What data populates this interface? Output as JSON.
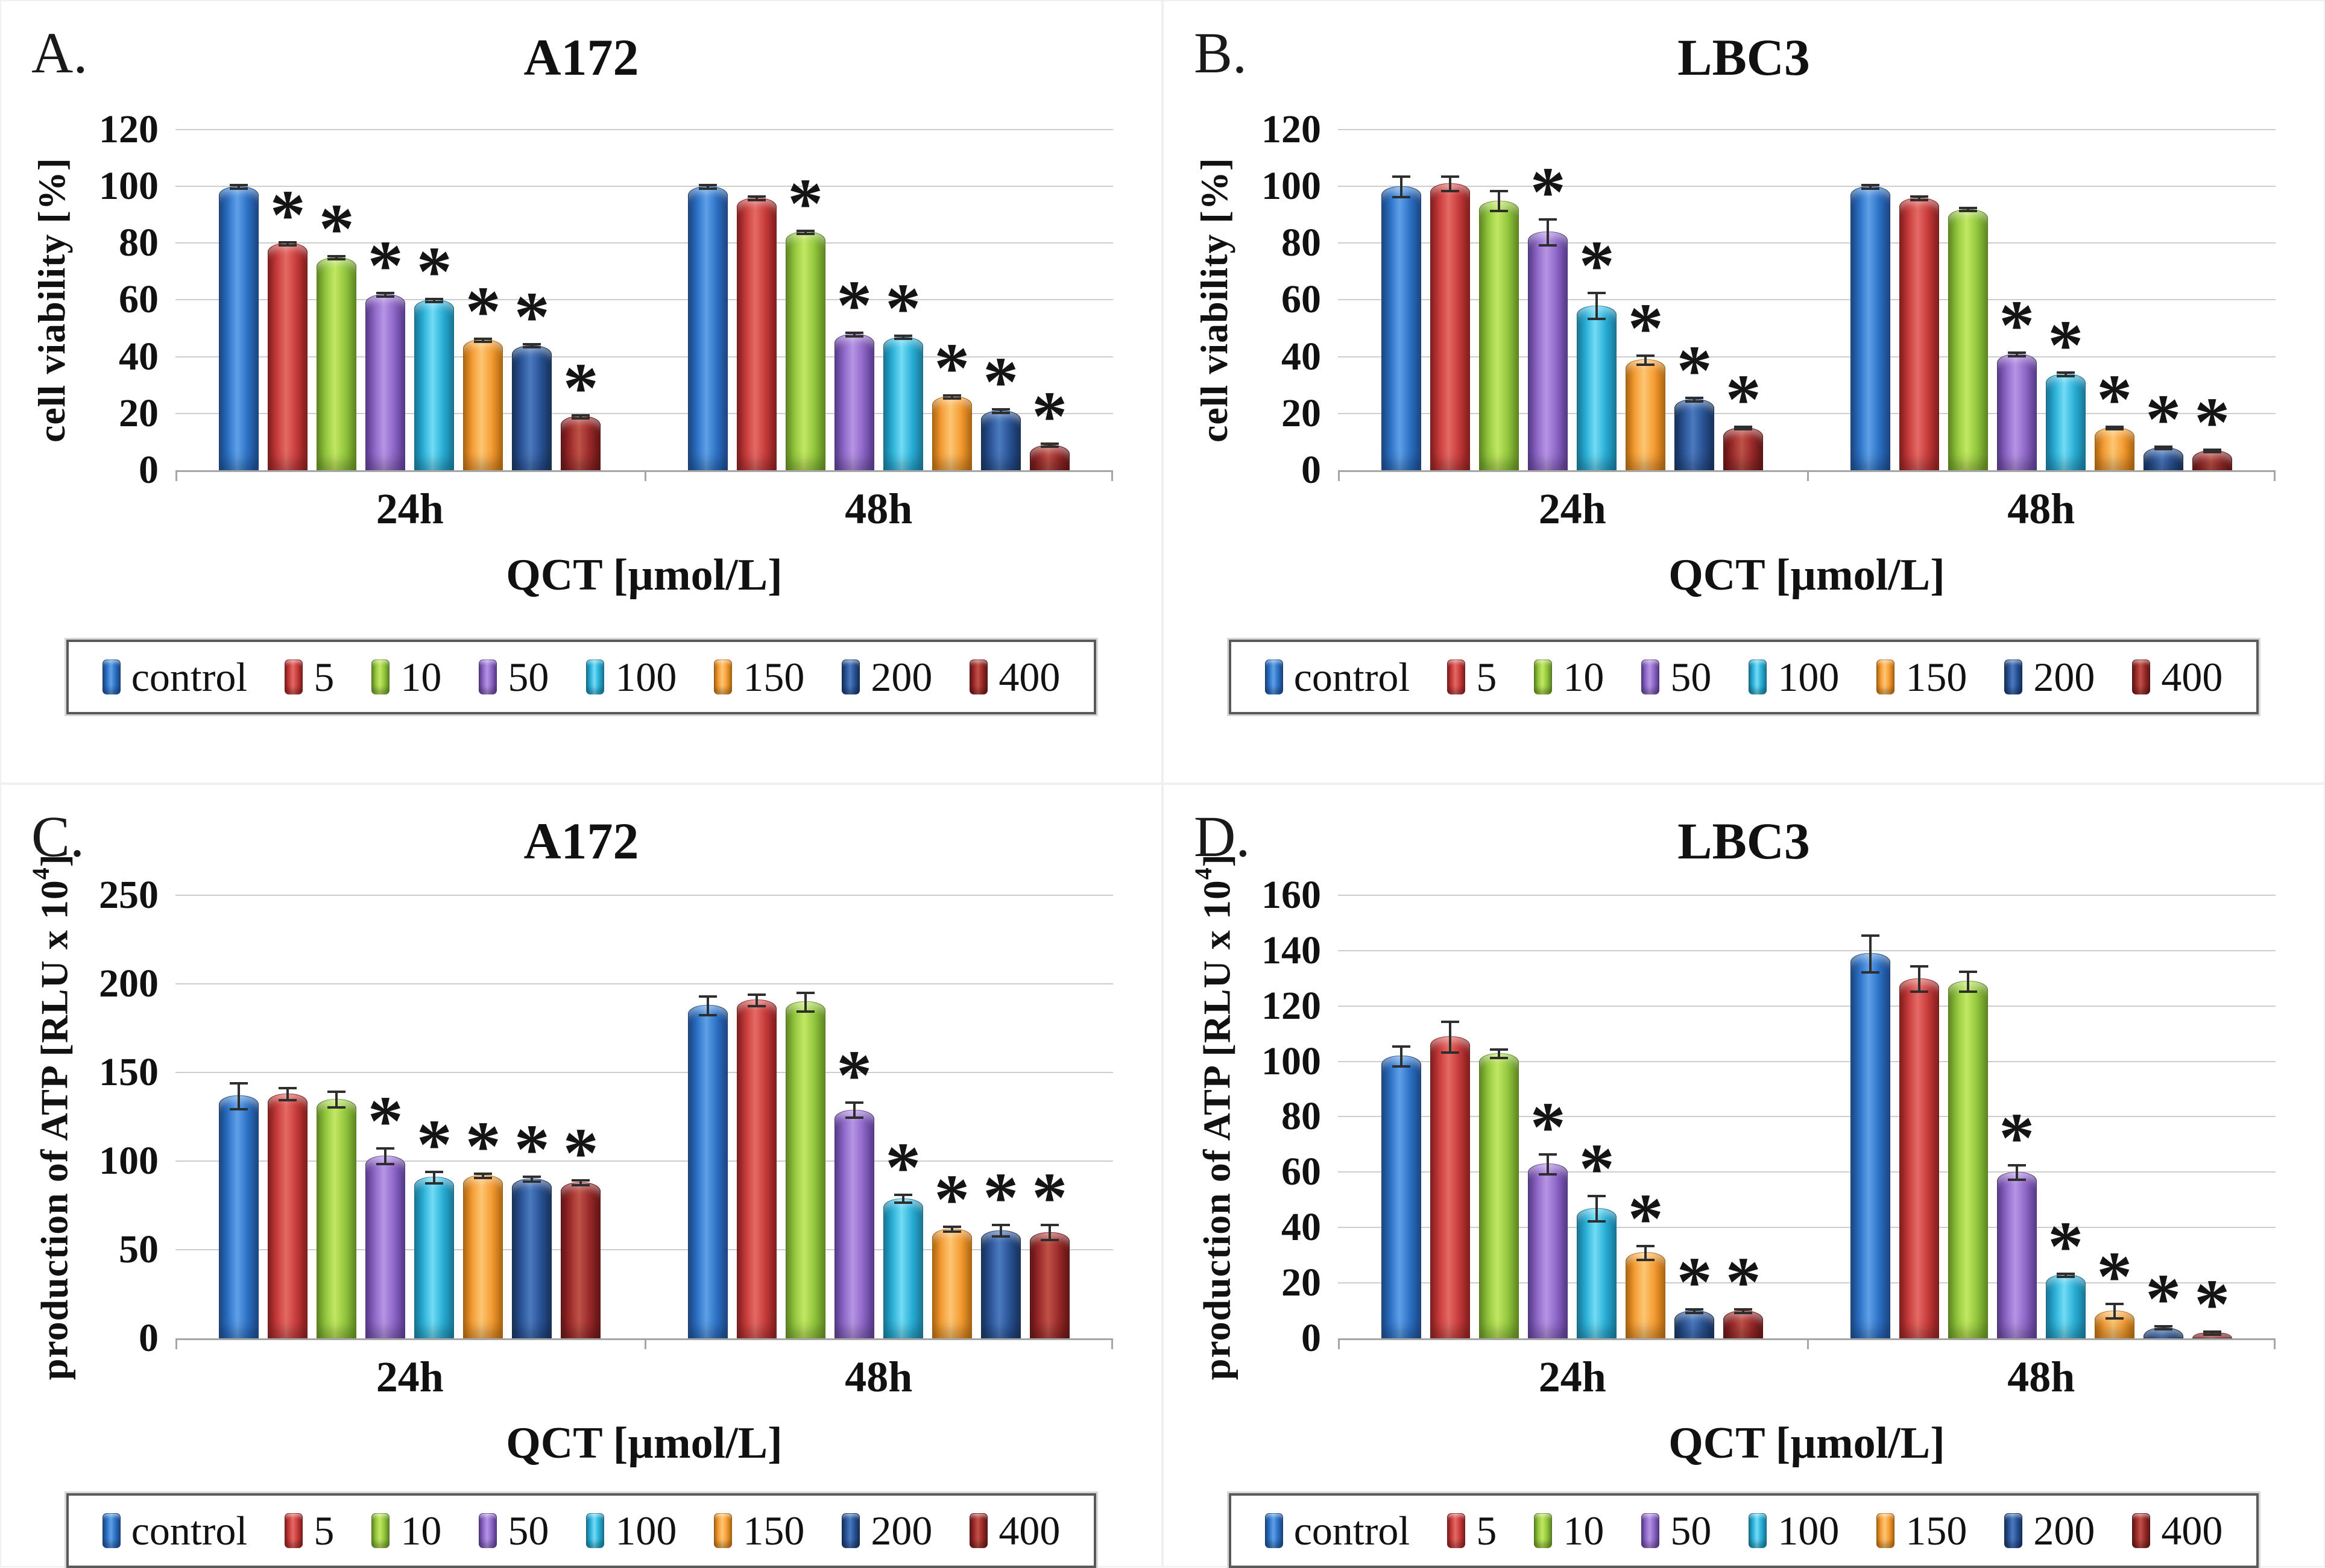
{
  "figure": {
    "background": "#ffffff",
    "panel_letters": [
      "A.",
      "B.",
      "C.",
      "D."
    ],
    "time_groups": [
      "24h",
      "48h"
    ]
  },
  "legend": {
    "labels": [
      "control",
      "5",
      "10",
      "50",
      "100",
      "150",
      "200",
      "400"
    ]
  },
  "colors": {
    "control": {
      "base": "#2D72C6",
      "light": "#5FA0E8",
      "dark": "#1C4C8F"
    },
    "5": {
      "base": "#C83C3C",
      "light": "#E46A64",
      "dark": "#8F1F1F"
    },
    "10": {
      "base": "#94C83F",
      "light": "#C2E763",
      "dark": "#689523"
    },
    "50": {
      "base": "#8F68C8",
      "light": "#B695E5",
      "dark": "#5E3E96"
    },
    "100": {
      "base": "#2BB0D8",
      "light": "#72DCF5",
      "dark": "#1881A5"
    },
    "150": {
      "base": "#F69D35",
      "light": "#FCC673",
      "dark": "#C1710E"
    },
    "200": {
      "base": "#2A5496",
      "light": "#4B7ABF",
      "dark": "#173463"
    },
    "400": {
      "base": "#9C2B2B",
      "light": "#BF5248",
      "dark": "#6A1515"
    }
  },
  "chart_data": [
    {
      "panel": "A.",
      "type": "bar",
      "title": "A172",
      "xlabel": "QCT [µmol/L]",
      "ylabel": "cell viability [%]",
      "ylim": [
        0,
        120
      ],
      "ytick_step": 20,
      "categories": [
        "24h",
        "48h"
      ],
      "grid": true,
      "legend_position": "bottom",
      "series": [
        {
          "name": "control",
          "values": [
            100,
            100
          ],
          "errors": [
            1,
            1
          ],
          "significant": [
            false,
            false
          ]
        },
        {
          "name": "5",
          "values": [
            80,
            96
          ],
          "errors": [
            1,
            1
          ],
          "significant": [
            true,
            false
          ]
        },
        {
          "name": "10",
          "values": [
            75,
            84
          ],
          "errors": [
            1,
            1
          ],
          "significant": [
            true,
            true
          ]
        },
        {
          "name": "50",
          "values": [
            62,
            48
          ],
          "errors": [
            1,
            1
          ],
          "significant": [
            true,
            true
          ]
        },
        {
          "name": "100",
          "values": [
            60,
            47
          ],
          "errors": [
            1,
            1
          ],
          "significant": [
            true,
            true
          ]
        },
        {
          "name": "150",
          "values": [
            46,
            26
          ],
          "errors": [
            1,
            1
          ],
          "significant": [
            true,
            true
          ]
        },
        {
          "name": "200",
          "values": [
            44,
            21
          ],
          "errors": [
            1,
            1
          ],
          "significant": [
            true,
            true
          ]
        },
        {
          "name": "400",
          "values": [
            19,
            9
          ],
          "errors": [
            1,
            1
          ],
          "significant": [
            true,
            true
          ]
        }
      ]
    },
    {
      "panel": "B.",
      "type": "bar",
      "title": "LBC3",
      "xlabel": "QCT [µmol/L]",
      "ylabel": "cell viability [%]",
      "ylim": [
        0,
        120
      ],
      "ytick_step": 20,
      "categories": [
        "24h",
        "48h"
      ],
      "grid": true,
      "legend_position": "bottom",
      "series": [
        {
          "name": "control",
          "values": [
            100,
            100
          ],
          "errors": [
            4,
            1
          ],
          "significant": [
            false,
            false
          ]
        },
        {
          "name": "5",
          "values": [
            101,
            96
          ],
          "errors": [
            3,
            1
          ],
          "significant": [
            false,
            false
          ]
        },
        {
          "name": "10",
          "values": [
            95,
            92
          ],
          "errors": [
            4,
            1
          ],
          "significant": [
            false,
            false
          ]
        },
        {
          "name": "50",
          "values": [
            84,
            41
          ],
          "errors": [
            5,
            1
          ],
          "significant": [
            true,
            true
          ]
        },
        {
          "name": "100",
          "values": [
            58,
            34
          ],
          "errors": [
            5,
            1
          ],
          "significant": [
            true,
            true
          ]
        },
        {
          "name": "150",
          "values": [
            39,
            15
          ],
          "errors": [
            2,
            0.5
          ],
          "significant": [
            true,
            true
          ]
        },
        {
          "name": "200",
          "values": [
            25,
            8
          ],
          "errors": [
            1,
            0.5
          ],
          "significant": [
            true,
            true
          ]
        },
        {
          "name": "400",
          "values": [
            15,
            7
          ],
          "errors": [
            0.5,
            0.5
          ],
          "significant": [
            true,
            true
          ]
        }
      ]
    },
    {
      "panel": "C.",
      "type": "bar",
      "title": "A172",
      "xlabel": "QCT [µmol/L]",
      "ylabel": "production  of ATP [RLU x 10^4]",
      "ylim": [
        0,
        250
      ],
      "ytick_step": 50,
      "categories": [
        "24h",
        "48h"
      ],
      "grid": true,
      "legend_position": "bottom",
      "series": [
        {
          "name": "control",
          "values": [
            137,
            188
          ],
          "errors": [
            8,
            6
          ],
          "significant": [
            false,
            false
          ]
        },
        {
          "name": "5",
          "values": [
            138,
            191
          ],
          "errors": [
            4,
            4
          ],
          "significant": [
            false,
            false
          ]
        },
        {
          "name": "10",
          "values": [
            135,
            190
          ],
          "errors": [
            5,
            6
          ],
          "significant": [
            false,
            false
          ]
        },
        {
          "name": "50",
          "values": [
            103,
            129
          ],
          "errors": [
            5,
            5
          ],
          "significant": [
            true,
            true
          ]
        },
        {
          "name": "100",
          "values": [
            91,
            79
          ],
          "errors": [
            4,
            3
          ],
          "significant": [
            true,
            true
          ]
        },
        {
          "name": "150",
          "values": [
            92,
            62
          ],
          "errors": [
            2,
            2
          ],
          "significant": [
            true,
            true
          ]
        },
        {
          "name": "200",
          "values": [
            90,
            61
          ],
          "errors": [
            2,
            4
          ],
          "significant": [
            true,
            true
          ]
        },
        {
          "name": "400",
          "values": [
            88,
            60
          ],
          "errors": [
            2,
            5
          ],
          "significant": [
            true,
            true
          ]
        }
      ]
    },
    {
      "panel": "D.",
      "type": "bar",
      "title": "LBC3",
      "xlabel": "QCT [µmol/L]",
      "ylabel": "production  of ATP [RLU x 10^4]",
      "ylim": [
        0,
        160
      ],
      "ytick_step": 20,
      "categories": [
        "24h",
        "48h"
      ],
      "grid": true,
      "legend_position": "bottom",
      "series": [
        {
          "name": "control",
          "values": [
            102,
            139
          ],
          "errors": [
            4,
            7
          ],
          "significant": [
            false,
            false
          ]
        },
        {
          "name": "5",
          "values": [
            109,
            130
          ],
          "errors": [
            6,
            5
          ],
          "significant": [
            false,
            false
          ]
        },
        {
          "name": "10",
          "values": [
            103,
            129
          ],
          "errors": [
            2,
            4
          ],
          "significant": [
            false,
            false
          ]
        },
        {
          "name": "50",
          "values": [
            63,
            60
          ],
          "errors": [
            4,
            3
          ],
          "significant": [
            true,
            true
          ]
        },
        {
          "name": "100",
          "values": [
            47,
            23
          ],
          "errors": [
            5,
            1
          ],
          "significant": [
            true,
            true
          ]
        },
        {
          "name": "150",
          "values": [
            31,
            10
          ],
          "errors": [
            3,
            3
          ],
          "significant": [
            true,
            true
          ]
        },
        {
          "name": "200",
          "values": [
            10,
            4
          ],
          "errors": [
            1,
            1
          ],
          "significant": [
            true,
            true
          ]
        },
        {
          "name": "400",
          "values": [
            10,
            2
          ],
          "errors": [
            1,
            1
          ],
          "significant": [
            true,
            true
          ]
        }
      ]
    }
  ]
}
